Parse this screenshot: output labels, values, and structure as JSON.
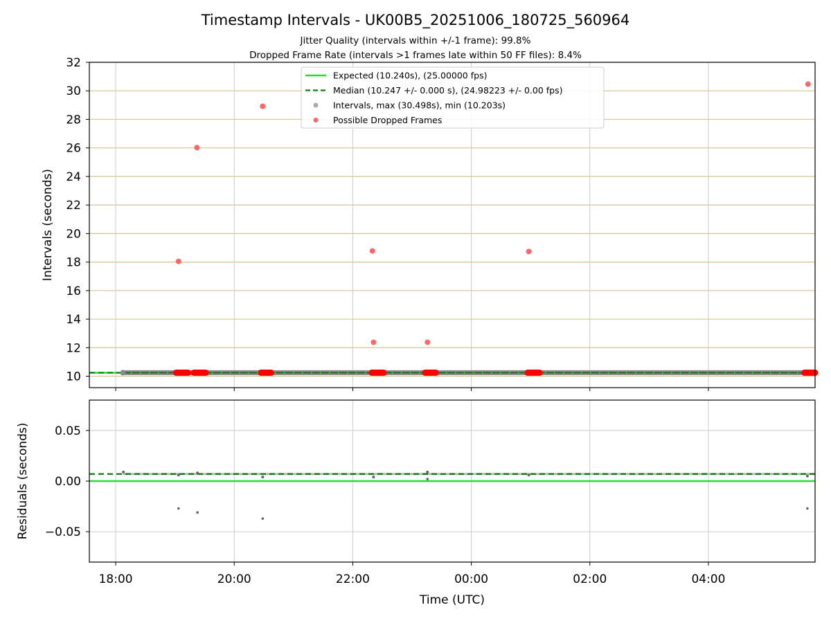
{
  "figure": {
    "title": "Timestamp Intervals - UK00B5_20251006_180725_560964",
    "subtitle_line1": "Jitter Quality (intervals within +/-1 frame): 99.8%",
    "subtitle_line2": "Dropped Frame Rate (intervals >1 frames late within 50 FF files): 8.4%"
  },
  "colors": {
    "expected": "#22e022",
    "median": "#0d7a0d",
    "intervals": "#888888",
    "dropped": "#ff4d4d",
    "dropped_band": "#ff0000",
    "hgrid_top": "#d6c68e",
    "grid": "#cccccc",
    "dark_line": "#505050"
  },
  "chart_data": [
    {
      "type": "scatter",
      "panel": "intervals",
      "ylabel": "Intervals (seconds)",
      "ylim": [
        9.2,
        32
      ],
      "xlim_hours": [
        17.555,
        29.8
      ],
      "yticks": [
        10,
        12,
        14,
        16,
        18,
        20,
        22,
        24,
        26,
        28,
        30,
        32
      ],
      "ytick_labels": [
        "10",
        "12",
        "14",
        "16",
        "18",
        "20",
        "22",
        "24",
        "26",
        "28",
        "30",
        "32"
      ],
      "grid": true,
      "legend_position": "top-center",
      "legend": [
        {
          "label": "Expected (10.240s), (25.00000 fps)",
          "kind": "solid-line"
        },
        {
          "label": "Median (10.247 +/- 0.000 s), (24.98223 +/- 0.00 fps)",
          "kind": "dashed-line"
        },
        {
          "label": "Intervals, max (30.498s), min (10.203s)",
          "kind": "grey-dot"
        },
        {
          "label": "Possible Dropped Frames",
          "kind": "red-dot"
        }
      ],
      "expected_value": 10.24,
      "median_value": 10.247,
      "interval_series_range_hours": [
        18.12,
        29.8
      ],
      "dropped_frames": [
        {
          "t": 19.06,
          "v": 18.05
        },
        {
          "t": 19.37,
          "v": 26.02
        },
        {
          "t": 20.48,
          "v": 28.92
        },
        {
          "t": 22.33,
          "v": 18.78
        },
        {
          "t": 22.35,
          "v": 12.38
        },
        {
          "t": 23.26,
          "v": 12.38
        },
        {
          "t": 24.97,
          "v": 18.74
        },
        {
          "t": 29.68,
          "v": 30.47
        }
      ],
      "dropped_bands_hours": [
        [
          19.02,
          19.22
        ],
        [
          19.32,
          19.52
        ],
        [
          20.45,
          20.62
        ],
        [
          22.32,
          22.52
        ],
        [
          23.22,
          23.4
        ],
        [
          24.95,
          25.15
        ],
        [
          29.62,
          29.8
        ]
      ]
    },
    {
      "type": "scatter",
      "panel": "residuals",
      "ylabel": "Residuals (seconds)",
      "xlabel": "Time (UTC)",
      "ylim": [
        -0.08,
        0.08
      ],
      "xlim_hours": [
        17.555,
        29.8
      ],
      "yticks": [
        -0.05,
        0.0,
        0.05
      ],
      "ytick_labels": [
        "−0.05",
        "0.00",
        "0.05"
      ],
      "xticks_hours": [
        18,
        20,
        22,
        24,
        26,
        28
      ],
      "xtick_labels": [
        "18:00",
        "20:00",
        "22:00",
        "00:00",
        "02:00",
        "04:00"
      ],
      "grid": true,
      "expected_residual": 0.0,
      "median_residual": 0.007,
      "outliers": [
        {
          "t": 19.06,
          "v": -0.027
        },
        {
          "t": 19.38,
          "v": -0.031
        },
        {
          "t": 20.48,
          "v": -0.037
        },
        {
          "t": 23.26,
          "v": 0.002
        },
        {
          "t": 29.67,
          "v": -0.027
        }
      ],
      "cluster_points": [
        {
          "t": 18.13,
          "v": 0.009
        },
        {
          "t": 19.06,
          "v": 0.006
        },
        {
          "t": 19.38,
          "v": 0.008
        },
        {
          "t": 20.48,
          "v": 0.004
        },
        {
          "t": 22.35,
          "v": 0.004
        },
        {
          "t": 23.26,
          "v": 0.009
        },
        {
          "t": 24.97,
          "v": 0.006
        },
        {
          "t": 29.67,
          "v": 0.005
        }
      ]
    }
  ]
}
